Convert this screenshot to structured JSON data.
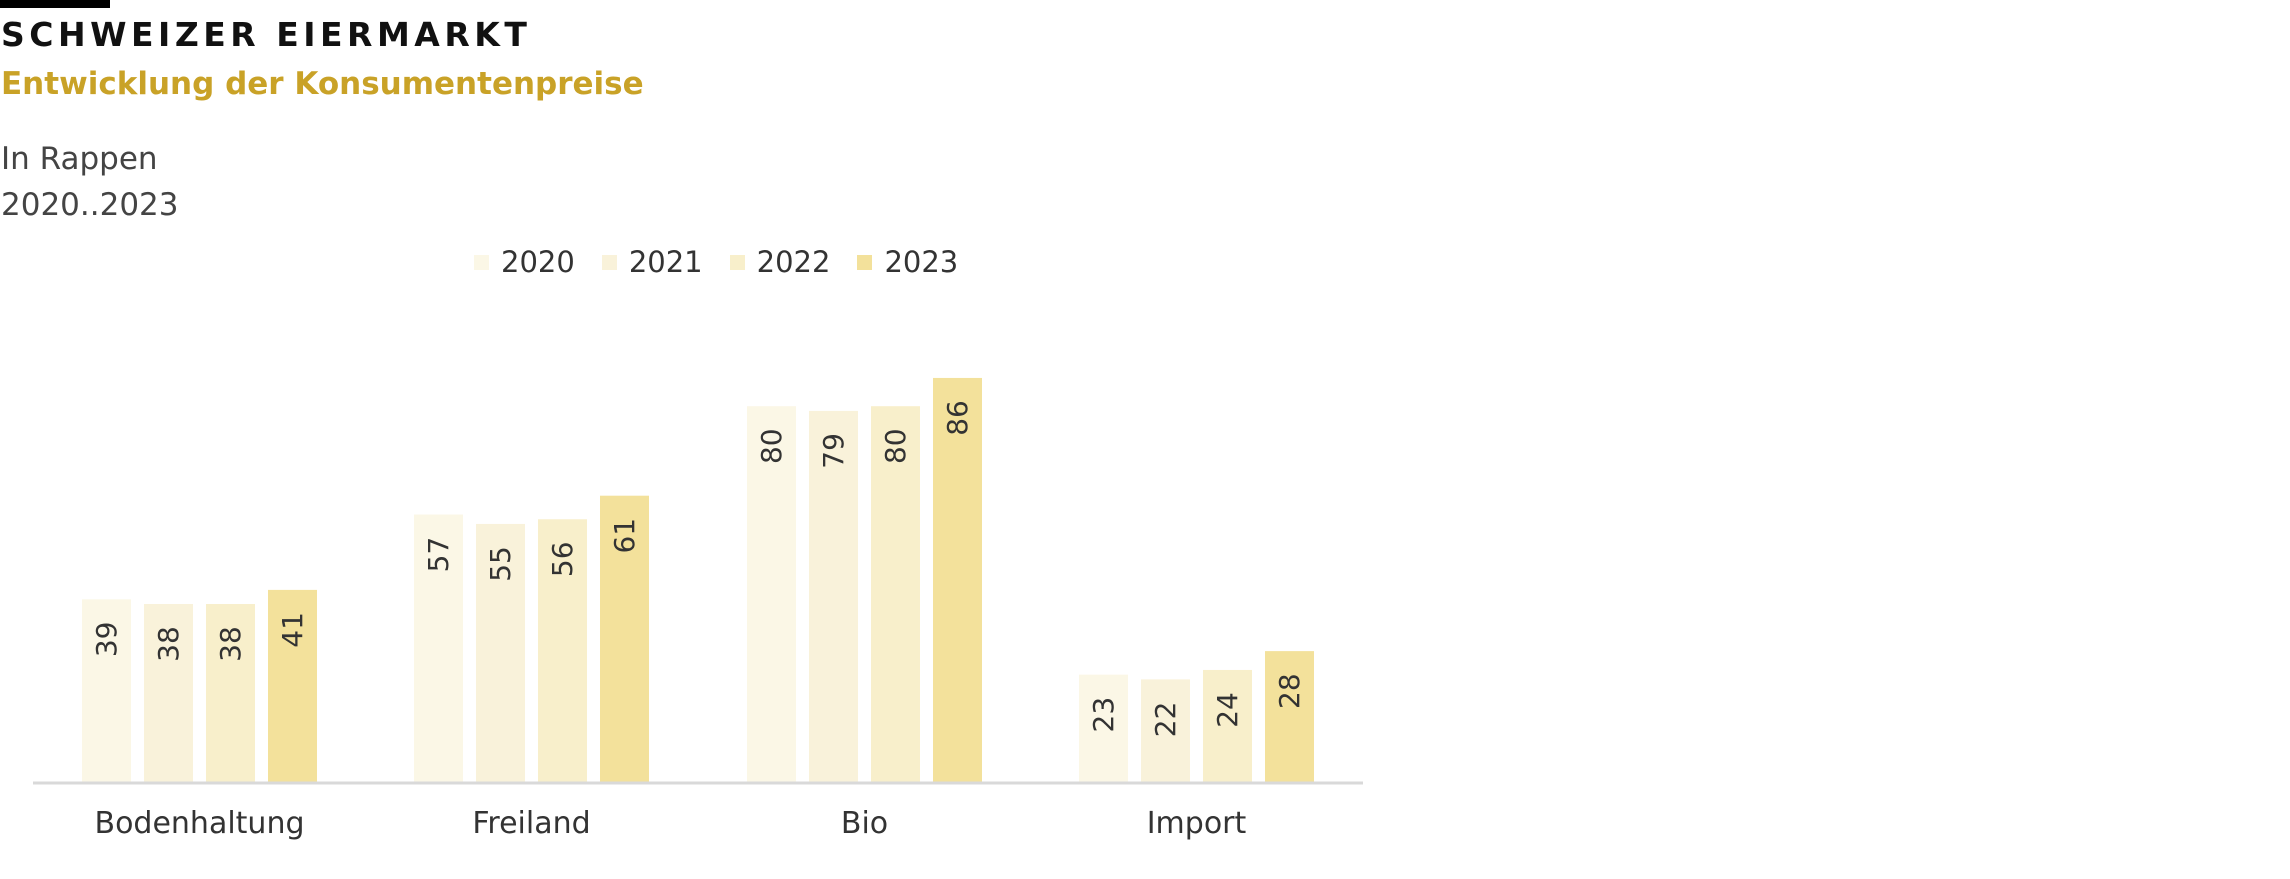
{
  "header": {
    "kicker": "SCHWEIZER EIERMARKT",
    "title": "Entwicklung der Konsumentenpreise",
    "subtitle_line1": "In Rappen",
    "subtitle_line2": "2020..2023"
  },
  "colors": {
    "title": "#c9a227",
    "axis": "#d9d9d9",
    "text": "#333333",
    "series": [
      "#fbf7e6",
      "#f9f2da",
      "#f8efcb",
      "#f3e19b"
    ]
  },
  "chart_data": {
    "type": "bar",
    "title": "Entwicklung der Konsumentenpreise",
    "xlabel": "",
    "ylabel": "",
    "unit": "In Rappen",
    "categories": [
      "Bodenhaltung",
      "Freiland",
      "Bio",
      "Import"
    ],
    "series": [
      {
        "name": "2020",
        "values": [
          39,
          57,
          80,
          23
        ]
      },
      {
        "name": "2021",
        "values": [
          38,
          55,
          79,
          22
        ]
      },
      {
        "name": "2022",
        "values": [
          38,
          56,
          80,
          24
        ]
      },
      {
        "name": "2023",
        "values": [
          41,
          61,
          86,
          28
        ]
      }
    ],
    "ylim": [
      0,
      86
    ],
    "grid": false,
    "legend_position": "top",
    "data_labels": true
  }
}
